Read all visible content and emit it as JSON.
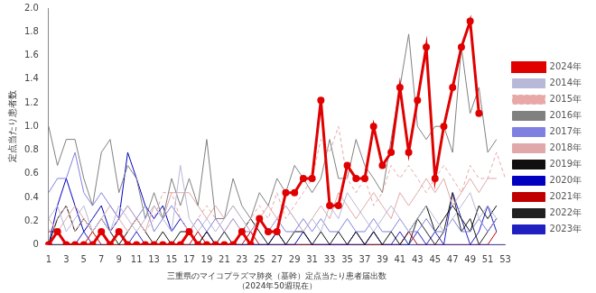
{
  "chart_data": {
    "type": "line",
    "title": "三重県のマイコプラズマ肺炎（基幹）定点当たり患者届出数",
    "subtitle": "（2024年50週現在）",
    "y_label": "定点当たり患者数",
    "categories": [
      1,
      null,
      3,
      null,
      5,
      null,
      7,
      null,
      9,
      null,
      11,
      null,
      13,
      null,
      15,
      null,
      17,
      null,
      19,
      null,
      21,
      null,
      23,
      null,
      25,
      null,
      27,
      null,
      29,
      null,
      31,
      null,
      33,
      null,
      35,
      null,
      37,
      null,
      39,
      null,
      41,
      null,
      43,
      null,
      45,
      null,
      47,
      null,
      49,
      null,
      51,
      null,
      53
    ],
    "ylim": [
      0,
      2
    ],
    "yticks": [
      0,
      0.2,
      0.4,
      0.6,
      0.8,
      {
        "value": 1,
        "label": "1.0"
      },
      1.2,
      1.4,
      1.6,
      1.8,
      {
        "value": 2,
        "label": "2.0"
      }
    ],
    "grid": false,
    "legend": "right",
    "series": [
      {
        "name": "2014年",
        "color": "#b8b8d8",
        "values": [
          0.22,
          0.33,
          0.11,
          0.22,
          0.33,
          0.11,
          0.22,
          0.11,
          0.33,
          0.22,
          0.11,
          0.22,
          0.33,
          0.22,
          0.11,
          0.67,
          0.22,
          0.11,
          0.22,
          0.11,
          0.22,
          0.33,
          0.22,
          0.11,
          0.22,
          0.11,
          0.22,
          0.33,
          0.22,
          0.11,
          0.22,
          0.11,
          0.33,
          0.22,
          0.44,
          0.33,
          0.22,
          0.11,
          0.22,
          0.33,
          0.22,
          0.11,
          0.22,
          0.33,
          0.22,
          0.11,
          0.22,
          0.33,
          0.44,
          0.22,
          0.33,
          0.22,
          null
        ]
      },
      {
        "name": "2015年",
        "color": "#e8a8a8",
        "line_style": "dashed",
        "values": [
          0.11,
          0.22,
          0.33,
          0.11,
          0.22,
          0.11,
          0.22,
          0.11,
          0.22,
          0.33,
          0.22,
          0.11,
          0.22,
          0.44,
          0.44,
          0.22,
          0.11,
          0.22,
          0.33,
          0.22,
          0.11,
          0.22,
          0.11,
          0.22,
          0.33,
          0.22,
          0.44,
          0.22,
          0.33,
          0.44,
          0.56,
          0.89,
          0.78,
          1.0,
          0.56,
          0.44,
          0.56,
          0.33,
          0.44,
          0.67,
          0.56,
          0.67,
          0.56,
          0.44,
          0.56,
          0.67,
          0.56,
          0.44,
          0.67,
          0.56,
          0.56,
          0.78,
          0.56
        ]
      },
      {
        "name": "2016年",
        "color": "#808080",
        "values": [
          1.0,
          0.67,
          0.89,
          0.89,
          0.56,
          0.33,
          0.78,
          0.89,
          0.44,
          0.67,
          0.56,
          0.22,
          0.44,
          0.22,
          0.56,
          0.33,
          0.56,
          0.33,
          0.89,
          0.22,
          0.22,
          0.56,
          0.33,
          0.22,
          0.44,
          0.33,
          0.56,
          0.44,
          0.67,
          0.56,
          0.44,
          0.56,
          0.89,
          0.56,
          0.56,
          0.89,
          0.67,
          0.56,
          0.44,
          0.89,
          1.33,
          1.78,
          1.0,
          0.89,
          1.0,
          1.0,
          0.78,
          1.67,
          1.11,
          1.33,
          0.78,
          0.89,
          null
        ]
      },
      {
        "name": "2017年",
        "color": "#8080e0",
        "values": [
          0.44,
          0.56,
          0.56,
          0.78,
          0.44,
          0.33,
          0.44,
          0.33,
          0.22,
          0.33,
          0.22,
          0.33,
          0.11,
          0.22,
          0.33,
          0.22,
          0.11,
          0.22,
          0.11,
          0.22,
          0.11,
          0.22,
          0.11,
          0.11,
          0.22,
          0.11,
          0.22,
          0.11,
          0.11,
          0.22,
          0.11,
          0.22,
          0.11,
          0.11,
          0.22,
          0.11,
          0.11,
          0.22,
          0.11,
          0.11,
          0.22,
          0.11,
          0.11,
          0.22,
          0.11,
          0.11,
          0.22,
          0.11,
          0.11,
          0.22,
          0.11,
          0.22,
          null
        ]
      },
      {
        "name": "2018年",
        "color": "#e0a8a8",
        "values": [
          0.22,
          0.11,
          0.22,
          0.33,
          0.22,
          0.11,
          0.22,
          0.33,
          0.22,
          0.11,
          0.22,
          0.11,
          0.33,
          0.22,
          0.44,
          0.44,
          0.44,
          0.33,
          0.22,
          0.33,
          0.22,
          0.33,
          0.22,
          0.11,
          0.22,
          0.33,
          0.22,
          0.33,
          0.22,
          0.11,
          0.22,
          0.33,
          0.22,
          0.44,
          0.33,
          0.22,
          0.33,
          0.44,
          0.33,
          0.22,
          0.44,
          0.33,
          0.44,
          0.56,
          0.44,
          0.56,
          0.33,
          0.44,
          0.56,
          0.44,
          0.56,
          0.56,
          null
        ]
      },
      {
        "name": "2019年",
        "color": "#101010",
        "values": [
          0,
          0.22,
          0.33,
          0.11,
          0.22,
          0.11,
          0.22,
          0.11,
          0,
          0.11,
          0.22,
          0.11,
          0,
          0.11,
          0,
          0.11,
          0.11,
          0,
          0.11,
          0,
          0.11,
          0,
          0.11,
          0.22,
          0.11,
          0,
          0.11,
          0,
          0.11,
          0.11,
          0,
          0.11,
          0,
          0.11,
          0,
          0.11,
          0,
          0.11,
          0,
          0.11,
          0,
          0.11,
          0.22,
          0.33,
          0.11,
          0.22,
          0.33,
          0.22,
          0.11,
          0.33,
          0.22,
          0.33,
          null
        ]
      },
      {
        "name": "2020年",
        "color": "#0000c0",
        "values": [
          0,
          0.33,
          0.56,
          0.33,
          0.11,
          0.22,
          0.33,
          0.11,
          0.22,
          0.78,
          0.56,
          0.33,
          0.22,
          0.33,
          0.11,
          0.22,
          0.11,
          0,
          0.11,
          0,
          0,
          0,
          0,
          0,
          0,
          0,
          0,
          0,
          0,
          0.11,
          0,
          0,
          0,
          0,
          0,
          0,
          0,
          0.11,
          0,
          0,
          0,
          0,
          0,
          0,
          0,
          0,
          0,
          0,
          0,
          0,
          0,
          0,
          0
        ]
      },
      {
        "name": "2021年",
        "color": "#c00000",
        "values": [
          0.11,
          0.11,
          0,
          0,
          0,
          0.11,
          0,
          0,
          0,
          0,
          0,
          0,
          0,
          0,
          0,
          0,
          0,
          0.11,
          0,
          0,
          0,
          0,
          0,
          0.11,
          0,
          0,
          0,
          0,
          0,
          0,
          0,
          0,
          0,
          0,
          0,
          0,
          0,
          0,
          0,
          0,
          0,
          0.11,
          0,
          0,
          0,
          0,
          0,
          0,
          0,
          0,
          0,
          0.11,
          null
        ]
      },
      {
        "name": "2022年",
        "color": "#202020",
        "values": [
          0,
          0,
          0,
          0,
          0,
          0,
          0,
          0,
          0,
          0,
          0,
          0,
          0,
          0,
          0,
          0,
          0,
          0,
          0,
          0,
          0,
          0,
          0,
          0,
          0,
          0,
          0,
          0,
          0,
          0,
          0,
          0,
          0,
          0,
          0,
          0,
          0,
          0,
          0,
          0,
          0,
          0,
          0.22,
          0.11,
          0,
          0.11,
          0.44,
          0.11,
          0.22,
          0,
          0.11,
          0.22,
          null
        ]
      },
      {
        "name": "2023年",
        "color": "#2020c0",
        "values": [
          0,
          0,
          0,
          0,
          0.11,
          0,
          0,
          0,
          0.11,
          0,
          0.11,
          0,
          0,
          0,
          0,
          0,
          0,
          0,
          0,
          0,
          0,
          0,
          0,
          0,
          0,
          0,
          0.11,
          0,
          0,
          0,
          0,
          0,
          0,
          0,
          0,
          0.11,
          0,
          0,
          0,
          0,
          0.11,
          0,
          0.11,
          0,
          0.11,
          0,
          0.44,
          0.22,
          0,
          0.11,
          0.33,
          0.11,
          null
        ]
      },
      {
        "name": "2024年",
        "color": "#e00000",
        "marker": "circle",
        "values": [
          0,
          0.11,
          0,
          0,
          0,
          0,
          0.11,
          0,
          0.11,
          0,
          0,
          0,
          0,
          0,
          0,
          0,
          0.11,
          0,
          0,
          0,
          0,
          0,
          0.11,
          0,
          0.22,
          0.11,
          0.11,
          0.44,
          0.44,
          0.56,
          0.56,
          1.22,
          0.33,
          0.33,
          0.67,
          0.56,
          0.56,
          1.0,
          0.67,
          0.78,
          1.33,
          0.78,
          1.22,
          1.67,
          0.56,
          1.0,
          1.33,
          1.67,
          1.89,
          1.11,
          null,
          null,
          null
        ]
      }
    ]
  }
}
